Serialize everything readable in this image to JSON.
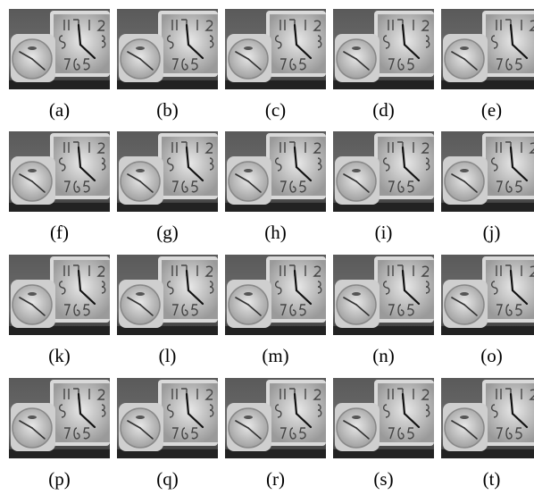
{
  "figure": {
    "captions": [
      "(a)",
      "(b)",
      "(c)",
      "(d)",
      "(e)",
      "(f)",
      "(g)",
      "(h)",
      "(i)",
      "(j)",
      "(k)",
      "(l)",
      "(m)",
      "(n)",
      "(o)",
      "(p)",
      "(q)",
      "(r)",
      "(s)",
      "(t)"
    ]
  }
}
